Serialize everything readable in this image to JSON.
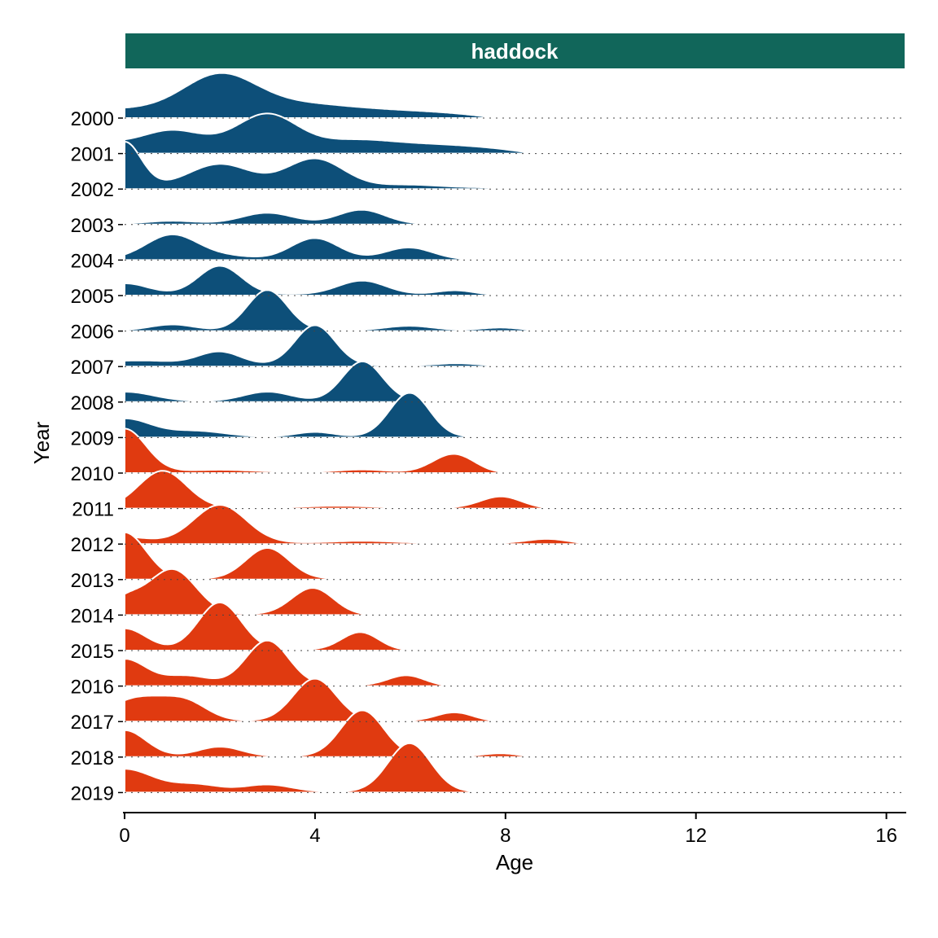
{
  "chart_data": {
    "type": "ridgeline",
    "facet_label": "haddock",
    "xlabel": "Age",
    "ylabel": "Year",
    "xlim": [
      0,
      16.4
    ],
    "xticks": [
      0,
      4,
      8,
      12,
      16
    ],
    "years": [
      "2000",
      "2001",
      "2002",
      "2003",
      "2004",
      "2005",
      "2006",
      "2007",
      "2008",
      "2009",
      "2010",
      "2011",
      "2012",
      "2013",
      "2014",
      "2015",
      "2016",
      "2017",
      "2018",
      "2019"
    ],
    "colors": {
      "blue": "#0d4f79",
      "orange": "#e03a10",
      "strip": "#11665a"
    },
    "series": [
      {
        "year": "2000",
        "color": "blue",
        "max_age": 7.8,
        "base": 0.2,
        "peaks": [
          {
            "age": 2,
            "height": 0.72,
            "width": 0.75
          },
          {
            "age": 3.6,
            "height": 0.12,
            "width": 1.0
          }
        ]
      },
      {
        "year": "2001",
        "color": "blue",
        "max_age": 8.6,
        "base": 0.25,
        "peaks": [
          {
            "age": 1,
            "height": 0.25,
            "width": 0.55
          },
          {
            "age": 3,
            "height": 0.6,
            "width": 0.6
          },
          {
            "age": 5,
            "height": 0.06,
            "width": 0.6
          }
        ]
      },
      {
        "year": "2002",
        "color": "blue",
        "max_age": 9.3,
        "base": 0.05,
        "peaks": [
          {
            "age": 0,
            "height": 0.95,
            "width": 0.35
          },
          {
            "age": 2,
            "height": 0.48,
            "width": 0.65
          },
          {
            "age": 4,
            "height": 0.6,
            "width": 0.6
          },
          {
            "age": 6,
            "height": 0.05,
            "width": 0.6
          }
        ]
      },
      {
        "year": "2003",
        "color": "blue",
        "max_age": 7.6,
        "base": 0.02,
        "peaks": [
          {
            "age": 1,
            "height": 0.06,
            "width": 0.5
          },
          {
            "age": 3,
            "height": 0.23,
            "width": 0.55
          },
          {
            "age": 5,
            "height": 0.32,
            "width": 0.5
          }
        ]
      },
      {
        "year": "2004",
        "color": "blue",
        "max_age": 8.6,
        "base": 0.02,
        "peaks": [
          {
            "age": 1,
            "height": 0.52,
            "width": 0.55
          },
          {
            "age": 2.2,
            "height": 0.06,
            "width": 0.5
          },
          {
            "age": 4,
            "height": 0.45,
            "width": 0.5
          },
          {
            "age": 6,
            "height": 0.28,
            "width": 0.5
          }
        ]
      },
      {
        "year": "2005",
        "color": "blue",
        "max_age": 8.5,
        "base": 0.03,
        "peaks": [
          {
            "age": 0,
            "height": 0.23,
            "width": 0.5
          },
          {
            "age": 2,
            "height": 0.6,
            "width": 0.45
          },
          {
            "age": 5,
            "height": 0.3,
            "width": 0.5
          },
          {
            "age": 7,
            "height": 0.13,
            "width": 0.4
          }
        ]
      },
      {
        "year": "2006",
        "color": "blue",
        "max_age": 9.3,
        "base": 0.02,
        "peaks": [
          {
            "age": 1,
            "height": 0.12,
            "width": 0.45
          },
          {
            "age": 3,
            "height": 0.85,
            "width": 0.42
          },
          {
            "age": 6,
            "height": 0.1,
            "width": 0.5
          },
          {
            "age": 8,
            "height": 0.1,
            "width": 0.45
          }
        ]
      },
      {
        "year": "2007",
        "color": "blue",
        "max_age": 9.8,
        "base": 0.03,
        "peaks": [
          {
            "age": 0.3,
            "height": 0.1,
            "width": 0.8
          },
          {
            "age": 2,
            "height": 0.28,
            "width": 0.45
          },
          {
            "age": 4,
            "height": 0.85,
            "width": 0.42
          },
          {
            "age": 7,
            "height": 0.05,
            "width": 0.4
          },
          {
            "age": 9,
            "height": 0.04,
            "width": 0.4
          }
        ]
      },
      {
        "year": "2008",
        "color": "blue",
        "max_age": 10.7,
        "base": 0.02,
        "peaks": [
          {
            "age": 0,
            "height": 0.2,
            "width": 0.6
          },
          {
            "age": 3,
            "height": 0.2,
            "width": 0.5
          },
          {
            "age": 5,
            "height": 0.85,
            "width": 0.42
          },
          {
            "age": 10,
            "height": 0.03,
            "width": 0.4
          }
        ]
      },
      {
        "year": "2009",
        "color": "blue",
        "max_age": 9.3,
        "base": 0.02,
        "peaks": [
          {
            "age": 0,
            "height": 0.38,
            "width": 0.55
          },
          {
            "age": 1.5,
            "height": 0.12,
            "width": 0.6
          },
          {
            "age": 4,
            "height": 0.1,
            "width": 0.4
          },
          {
            "age": 6,
            "height": 1.0,
            "width": 0.42
          }
        ]
      },
      {
        "year": "2010",
        "color": "orange",
        "max_age": 8.3,
        "base": 0.02,
        "peaks": [
          {
            "age": 0,
            "height": 0.92,
            "width": 0.45
          },
          {
            "age": 2,
            "height": 0.05,
            "width": 0.7
          },
          {
            "age": 5,
            "height": 0.06,
            "width": 0.5
          },
          {
            "age": 7,
            "height": 0.6,
            "width": 0.45
          }
        ]
      },
      {
        "year": "2011",
        "color": "orange",
        "max_age": 9.3,
        "base": 0.02,
        "peaks": [
          {
            "age": 0.8,
            "height": 0.78,
            "width": 0.5
          },
          {
            "age": 4.5,
            "height": 0.04,
            "width": 0.7
          },
          {
            "age": 8,
            "height": 0.4,
            "width": 0.45
          }
        ]
      },
      {
        "year": "2012",
        "color": "orange",
        "max_age": 10.1,
        "base": 0.03,
        "peaks": [
          {
            "age": 0,
            "height": 0.12,
            "width": 0.5
          },
          {
            "age": 2,
            "height": 0.8,
            "width": 0.55
          },
          {
            "age": 5,
            "height": 0.04,
            "width": 0.6
          },
          {
            "age": 9,
            "height": 0.18,
            "width": 0.45
          }
        ]
      },
      {
        "year": "2013",
        "color": "orange",
        "max_age": 10.9,
        "base": 0.02,
        "peaks": [
          {
            "age": 0,
            "height": 0.98,
            "width": 0.45
          },
          {
            "age": 3,
            "height": 0.65,
            "width": 0.45
          },
          {
            "age": 10,
            "height": 0.06,
            "width": 0.4
          }
        ]
      },
      {
        "year": "2014",
        "color": "orange",
        "max_age": 5.5,
        "base": 0.02,
        "peaks": [
          {
            "age": 0,
            "height": 0.3,
            "width": 0.35
          },
          {
            "age": 1,
            "height": 0.95,
            "width": 0.5
          },
          {
            "age": 4,
            "height": 0.65,
            "width": 0.45
          }
        ]
      },
      {
        "year": "2015",
        "color": "orange",
        "max_age": 6.4,
        "base": 0.02,
        "peaks": [
          {
            "age": 0,
            "height": 0.45,
            "width": 0.45
          },
          {
            "age": 2,
            "height": 1.0,
            "width": 0.45
          },
          {
            "age": 5,
            "height": 0.48,
            "width": 0.4
          }
        ]
      },
      {
        "year": "2016",
        "color": "orange",
        "max_age": 7.1,
        "base": 0.02,
        "peaks": [
          {
            "age": 0,
            "height": 0.55,
            "width": 0.45
          },
          {
            "age": 1.3,
            "height": 0.2,
            "width": 0.5
          },
          {
            "age": 3,
            "height": 0.95,
            "width": 0.45
          },
          {
            "age": 6,
            "height": 0.33,
            "width": 0.4
          }
        ]
      },
      {
        "year": "2017",
        "color": "orange",
        "max_age": 8.3,
        "base": 0.02,
        "peaks": [
          {
            "age": 0.3,
            "height": 0.48,
            "width": 0.6
          },
          {
            "age": 1.3,
            "height": 0.35,
            "width": 0.45
          },
          {
            "age": 4,
            "height": 0.9,
            "width": 0.45
          },
          {
            "age": 7,
            "height": 0.28,
            "width": 0.4
          }
        ]
      },
      {
        "year": "2018",
        "color": "orange",
        "max_age": 9.0,
        "base": 0.02,
        "peaks": [
          {
            "age": 0,
            "height": 0.55,
            "width": 0.45
          },
          {
            "age": 2,
            "height": 0.2,
            "width": 0.45
          },
          {
            "age": 5,
            "height": 1.0,
            "width": 0.45
          },
          {
            "age": 8,
            "height": 0.13,
            "width": 0.4
          }
        ]
      },
      {
        "year": "2019",
        "color": "orange",
        "max_age": 9.4,
        "base": 0.02,
        "peaks": [
          {
            "age": 0,
            "height": 0.48,
            "width": 0.6
          },
          {
            "age": 1.5,
            "height": 0.15,
            "width": 0.5
          },
          {
            "age": 3,
            "height": 0.15,
            "width": 0.5
          },
          {
            "age": 6,
            "height": 1.1,
            "width": 0.45
          },
          {
            "age": 9,
            "height": 0.03,
            "width": 0.4
          }
        ]
      }
    ]
  }
}
